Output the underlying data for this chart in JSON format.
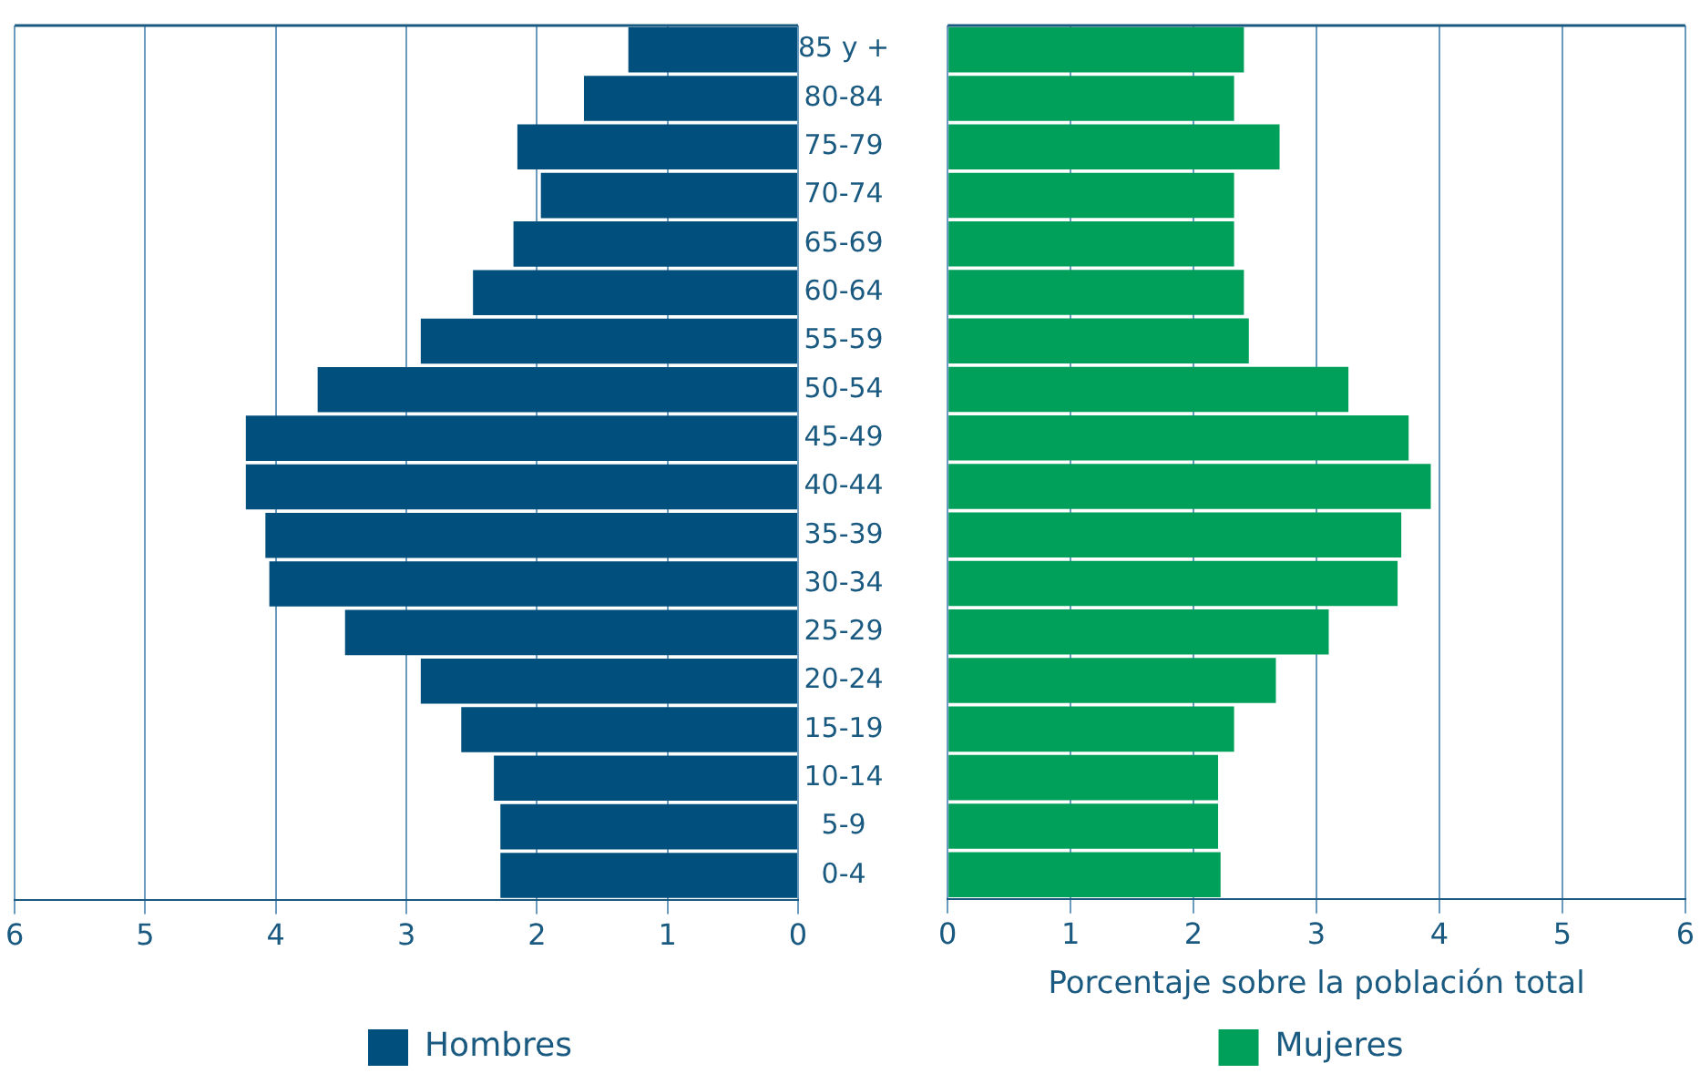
{
  "chart_data": [
    {
      "type": "bar",
      "orientation": "horizontal",
      "categories": [
        "85 y +",
        "80-84",
        "75-79",
        "70-74",
        "65-69",
        "60-64",
        "55-59",
        "50-54",
        "45-49",
        "40-44",
        "35-39",
        "30-34",
        "25-29",
        "20-24",
        "15-19",
        "10-14",
        "5-9",
        "0-4"
      ],
      "series": [
        {
          "name": "Hombres",
          "color": "#004f7c",
          "values": [
            1.3,
            1.64,
            2.15,
            1.97,
            2.18,
            2.49,
            2.89,
            3.68,
            4.23,
            4.23,
            4.08,
            4.05,
            3.47,
            2.89,
            2.58,
            2.33,
            2.28,
            2.28
          ]
        }
      ],
      "xlim": [
        6,
        0
      ],
      "xticks": [
        6,
        5,
        4,
        3,
        2,
        1,
        0
      ],
      "grid": "x",
      "legend": "bottom"
    },
    {
      "type": "bar",
      "orientation": "horizontal",
      "categories": [
        null,
        null,
        null,
        null,
        null,
        null,
        null,
        null,
        null,
        null,
        null,
        null,
        null,
        null,
        null,
        null,
        null,
        null
      ],
      "series": [
        {
          "name": "Mujeres",
          "color": "#00a05a",
          "values": [
            2.41,
            2.33,
            2.7,
            2.33,
            2.33,
            2.41,
            2.45,
            3.26,
            3.75,
            3.93,
            3.69,
            3.66,
            3.1,
            2.67,
            2.33,
            2.2,
            2.2,
            2.22
          ]
        }
      ],
      "xlim": [
        0,
        6
      ],
      "xticks": [
        0,
        1,
        2,
        3,
        4,
        5,
        6
      ],
      "xlabel": "Porcentaje sobre la población total",
      "grid": "x",
      "legend": "bottom",
      "tick_labels": "x"
    }
  ]
}
